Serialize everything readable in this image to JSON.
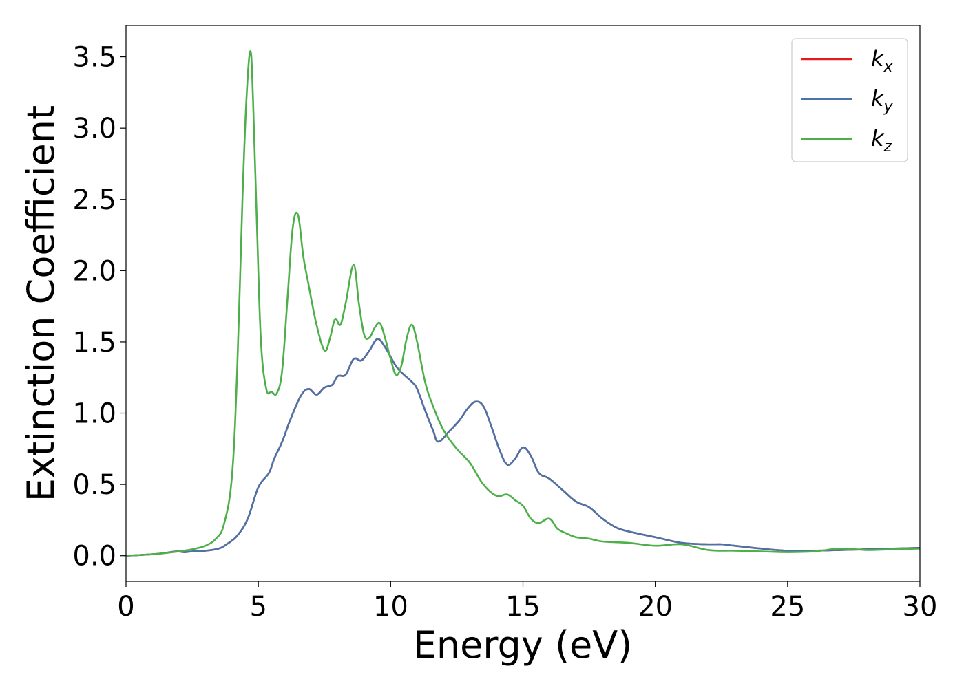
{
  "chart_data": {
    "type": "line",
    "title": "",
    "xlabel": "Energy (eV)",
    "ylabel": "Extinction Coefficient",
    "xlim": [
      0,
      30
    ],
    "ylim": [
      -0.18,
      3.72
    ],
    "xticks": [
      0,
      5,
      10,
      15,
      20,
      25,
      30
    ],
    "xtick_labels": [
      "0",
      "5",
      "10",
      "15",
      "20",
      "25",
      "30"
    ],
    "yticks": [
      0.0,
      0.5,
      1.0,
      1.5,
      2.0,
      2.5,
      3.0,
      3.5
    ],
    "ytick_labels": [
      "0.0",
      "0.5",
      "1.0",
      "1.5",
      "2.0",
      "2.5",
      "3.0",
      "3.5"
    ],
    "grid": false,
    "legend_position": "top-right",
    "series": [
      {
        "name": "kx",
        "name_base": "k",
        "name_sub": "x",
        "color": "#e41a1c",
        "x": [
          0,
          1,
          1.5,
          1.9,
          2.2,
          2.5,
          3,
          3.5,
          3.8,
          4.2,
          4.6,
          5.0,
          5.4,
          5.6,
          5.9,
          6.2,
          6.6,
          6.9,
          7.2,
          7.5,
          7.8,
          8.0,
          8.3,
          8.6,
          8.9,
          9.2,
          9.5,
          9.8,
          10.2,
          10.5,
          10.8,
          11.0,
          11.3,
          11.6,
          11.8,
          12.2,
          12.6,
          12.9,
          13.2,
          13.5,
          13.8,
          14.1,
          14.4,
          14.7,
          15.0,
          15.3,
          15.6,
          16.0,
          16.5,
          17.0,
          17.5,
          18.0,
          18.5,
          19.0,
          20.0,
          21.0,
          22.0,
          22.5,
          23.0,
          24.0,
          25.0,
          26.0,
          27.0,
          28.0,
          29.0,
          30.0
        ],
        "values": [
          0.0,
          0.01,
          0.02,
          0.03,
          0.025,
          0.03,
          0.035,
          0.05,
          0.08,
          0.14,
          0.26,
          0.48,
          0.58,
          0.68,
          0.8,
          0.95,
          1.12,
          1.17,
          1.13,
          1.18,
          1.2,
          1.26,
          1.27,
          1.38,
          1.37,
          1.44,
          1.52,
          1.46,
          1.33,
          1.27,
          1.22,
          1.17,
          1.02,
          0.88,
          0.8,
          0.87,
          0.95,
          1.03,
          1.08,
          1.05,
          0.91,
          0.75,
          0.64,
          0.68,
          0.76,
          0.7,
          0.58,
          0.54,
          0.46,
          0.38,
          0.34,
          0.26,
          0.2,
          0.17,
          0.13,
          0.09,
          0.08,
          0.08,
          0.07,
          0.05,
          0.035,
          0.035,
          0.04,
          0.045,
          0.05,
          0.055
        ]
      },
      {
        "name": "ky",
        "name_base": "k",
        "name_sub": "y",
        "color": "#4a73a8",
        "x": [
          0,
          1,
          1.5,
          1.9,
          2.2,
          2.5,
          3,
          3.5,
          3.8,
          4.2,
          4.6,
          5.0,
          5.4,
          5.6,
          5.9,
          6.2,
          6.6,
          6.9,
          7.2,
          7.5,
          7.8,
          8.0,
          8.3,
          8.6,
          8.9,
          9.2,
          9.5,
          9.8,
          10.2,
          10.5,
          10.8,
          11.0,
          11.3,
          11.6,
          11.8,
          12.2,
          12.6,
          12.9,
          13.2,
          13.5,
          13.8,
          14.1,
          14.4,
          14.7,
          15.0,
          15.3,
          15.6,
          16.0,
          16.5,
          17.0,
          17.5,
          18.0,
          18.5,
          19.0,
          20.0,
          21.0,
          22.0,
          22.5,
          23.0,
          24.0,
          25.0,
          26.0,
          27.0,
          28.0,
          29.0,
          30.0
        ],
        "values": [
          0.0,
          0.01,
          0.02,
          0.03,
          0.025,
          0.03,
          0.035,
          0.05,
          0.08,
          0.14,
          0.26,
          0.48,
          0.58,
          0.68,
          0.8,
          0.95,
          1.12,
          1.17,
          1.13,
          1.18,
          1.2,
          1.26,
          1.27,
          1.38,
          1.37,
          1.44,
          1.52,
          1.46,
          1.33,
          1.27,
          1.22,
          1.17,
          1.02,
          0.88,
          0.8,
          0.87,
          0.95,
          1.03,
          1.08,
          1.05,
          0.91,
          0.75,
          0.64,
          0.68,
          0.76,
          0.7,
          0.58,
          0.54,
          0.46,
          0.38,
          0.34,
          0.26,
          0.2,
          0.17,
          0.13,
          0.09,
          0.08,
          0.08,
          0.07,
          0.05,
          0.035,
          0.035,
          0.04,
          0.045,
          0.05,
          0.055
        ]
      },
      {
        "name": "kz",
        "name_base": "k",
        "name_sub": "z",
        "color": "#4daf4a",
        "x": [
          0,
          1,
          1.5,
          2.0,
          2.5,
          3.0,
          3.4,
          3.7,
          4.0,
          4.2,
          4.4,
          4.55,
          4.7,
          4.8,
          4.95,
          5.1,
          5.3,
          5.5,
          5.7,
          5.9,
          6.1,
          6.3,
          6.5,
          6.7,
          6.9,
          7.2,
          7.5,
          7.7,
          7.9,
          8.1,
          8.3,
          8.6,
          8.8,
          9.0,
          9.2,
          9.4,
          9.6,
          9.8,
          10.0,
          10.2,
          10.4,
          10.6,
          10.8,
          11.0,
          11.3,
          11.6,
          12.0,
          12.5,
          13.0,
          13.5,
          14.0,
          14.4,
          14.7,
          15.0,
          15.3,
          15.6,
          16.0,
          16.3,
          16.6,
          17.0,
          17.5,
          18.0,
          19.0,
          20.0,
          21.0,
          22.0,
          23.0,
          24.0,
          25.0,
          26.0,
          27.0,
          28.0,
          29.0,
          30.0
        ],
        "values": [
          0.0,
          0.01,
          0.02,
          0.03,
          0.045,
          0.07,
          0.12,
          0.22,
          0.55,
          1.3,
          2.5,
          3.2,
          3.54,
          3.2,
          2.3,
          1.5,
          1.17,
          1.15,
          1.14,
          1.3,
          1.8,
          2.3,
          2.39,
          2.1,
          1.9,
          1.62,
          1.44,
          1.52,
          1.66,
          1.62,
          1.77,
          2.04,
          1.77,
          1.55,
          1.53,
          1.6,
          1.63,
          1.52,
          1.38,
          1.27,
          1.33,
          1.52,
          1.62,
          1.5,
          1.22,
          1.05,
          0.88,
          0.75,
          0.65,
          0.5,
          0.42,
          0.43,
          0.39,
          0.35,
          0.26,
          0.23,
          0.26,
          0.19,
          0.16,
          0.13,
          0.12,
          0.1,
          0.09,
          0.07,
          0.08,
          0.04,
          0.035,
          0.03,
          0.025,
          0.03,
          0.05,
          0.04,
          0.045,
          0.05
        ]
      }
    ]
  }
}
